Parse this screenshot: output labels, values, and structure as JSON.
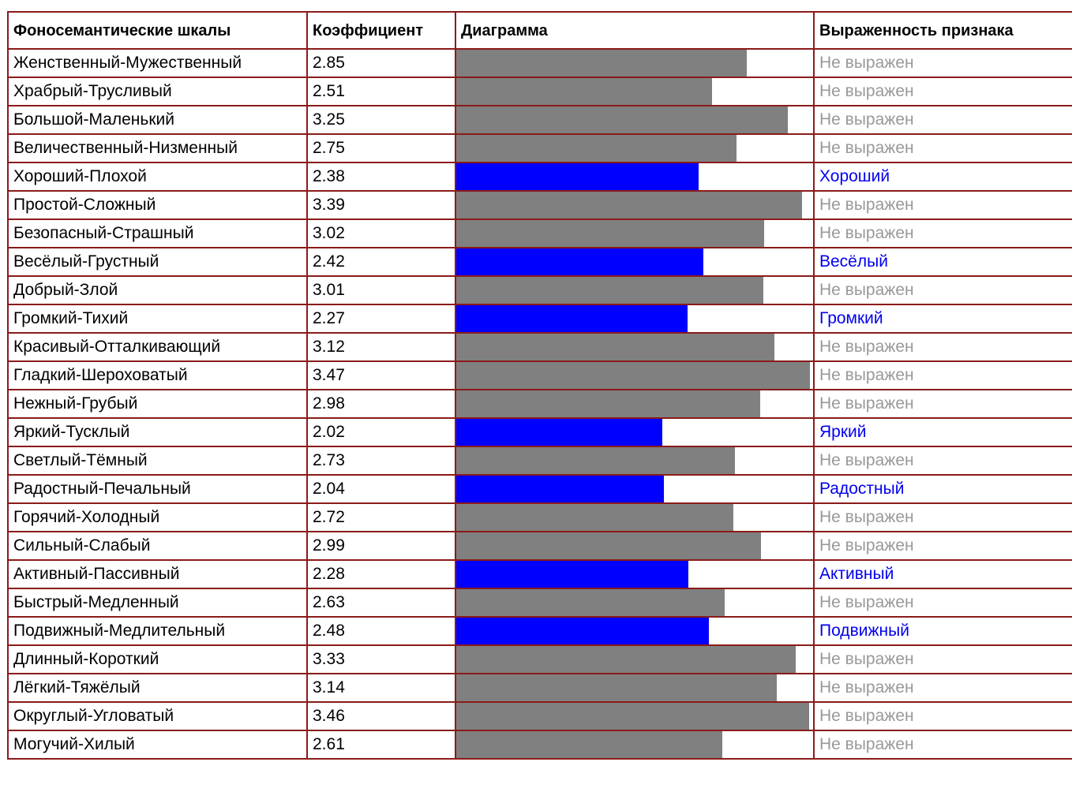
{
  "table": {
    "headers": {
      "scale": "Фоносемантические шкалы",
      "coefficient": "Коэффициент",
      "diagram": "Диаграмма",
      "expression": "Выраженность признака"
    },
    "bar_max": 3.5,
    "colors": {
      "border": "#8b1a1a",
      "bar_neutral": "#808080",
      "bar_expressed": "#0000ff",
      "text_neutral": "#999999",
      "text_expressed": "#0000ee"
    },
    "rows": [
      {
        "scale": "Женственный-Мужественный",
        "coefficient": "2.85",
        "value": 2.85,
        "expressed": false,
        "expression": "Не выражен"
      },
      {
        "scale": "Храбрый-Трусливый",
        "coefficient": "2.51",
        "value": 2.51,
        "expressed": false,
        "expression": "Не выражен"
      },
      {
        "scale": "Большой-Маленький",
        "coefficient": "3.25",
        "value": 3.25,
        "expressed": false,
        "expression": "Не выражен"
      },
      {
        "scale": "Величественный-Низменный",
        "coefficient": "2.75",
        "value": 2.75,
        "expressed": false,
        "expression": "Не выражен"
      },
      {
        "scale": "Хороший-Плохой",
        "coefficient": "2.38",
        "value": 2.38,
        "expressed": true,
        "expression": "Хороший"
      },
      {
        "scale": "Простой-Сложный",
        "coefficient": "3.39",
        "value": 3.39,
        "expressed": false,
        "expression": "Не выражен"
      },
      {
        "scale": "Безопасный-Страшный",
        "coefficient": "3.02",
        "value": 3.02,
        "expressed": false,
        "expression": "Не выражен"
      },
      {
        "scale": "Весёлый-Грустный",
        "coefficient": "2.42",
        "value": 2.42,
        "expressed": true,
        "expression": "Весёлый"
      },
      {
        "scale": "Добрый-Злой",
        "coefficient": "3.01",
        "value": 3.01,
        "expressed": false,
        "expression": "Не выражен"
      },
      {
        "scale": "Громкий-Тихий",
        "coefficient": "2.27",
        "value": 2.27,
        "expressed": true,
        "expression": "Громкий"
      },
      {
        "scale": "Красивый-Отталкивающий",
        "coefficient": "3.12",
        "value": 3.12,
        "expressed": false,
        "expression": "Не выражен"
      },
      {
        "scale": "Гладкий-Шероховатый",
        "coefficient": "3.47",
        "value": 3.47,
        "expressed": false,
        "expression": "Не выражен"
      },
      {
        "scale": "Нежный-Грубый",
        "coefficient": "2.98",
        "value": 2.98,
        "expressed": false,
        "expression": "Не выражен"
      },
      {
        "scale": "Яркий-Тусклый",
        "coefficient": "2.02",
        "value": 2.02,
        "expressed": true,
        "expression": "Яркий"
      },
      {
        "scale": "Светлый-Тёмный",
        "coefficient": "2.73",
        "value": 2.73,
        "expressed": false,
        "expression": "Не выражен"
      },
      {
        "scale": "Радостный-Печальный",
        "coefficient": "2.04",
        "value": 2.04,
        "expressed": true,
        "expression": "Радостный"
      },
      {
        "scale": "Горячий-Холодный",
        "coefficient": "2.72",
        "value": 2.72,
        "expressed": false,
        "expression": "Не выражен"
      },
      {
        "scale": "Сильный-Слабый",
        "coefficient": "2.99",
        "value": 2.99,
        "expressed": false,
        "expression": "Не выражен"
      },
      {
        "scale": "Активный-Пассивный",
        "coefficient": "2.28",
        "value": 2.28,
        "expressed": true,
        "expression": "Активный"
      },
      {
        "scale": "Быстрый-Медленный",
        "coefficient": "2.63",
        "value": 2.63,
        "expressed": false,
        "expression": "Не выражен"
      },
      {
        "scale": "Подвижный-Медлительный",
        "coefficient": "2.48",
        "value": 2.48,
        "expressed": true,
        "expression": "Подвижный"
      },
      {
        "scale": "Длинный-Короткий",
        "coefficient": "3.33",
        "value": 3.33,
        "expressed": false,
        "expression": "Не выражен"
      },
      {
        "scale": "Лёгкий-Тяжёлый",
        "coefficient": "3.14",
        "value": 3.14,
        "expressed": false,
        "expression": "Не выражен"
      },
      {
        "scale": "Округлый-Угловатый",
        "coefficient": "3.46",
        "value": 3.46,
        "expressed": false,
        "expression": "Не выражен"
      },
      {
        "scale": "Могучий-Хилый",
        "coefficient": "2.61",
        "value": 2.61,
        "expressed": false,
        "expression": "Не выражен"
      }
    ]
  }
}
